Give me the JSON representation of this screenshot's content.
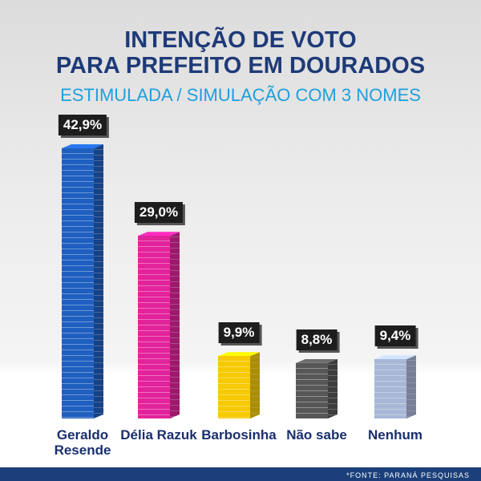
{
  "chart_data": {
    "type": "bar",
    "title": [
      "INTENÇÃO DE VOTO",
      "PARA PREFEITO EM DOURADOS"
    ],
    "subtitle": "ESTIMULADA / SIMULAÇÃO COM 3 NOMES",
    "categories": [
      "Geraldo Resende",
      "Délia Razuk",
      "Barbosinha",
      "Não sabe",
      "Nenhum"
    ],
    "values": [
      42.9,
      29.0,
      9.9,
      8.8,
      9.4
    ],
    "value_labels": [
      "42,9%",
      "29,0%",
      "9,9%",
      "8,8%",
      "9,4%"
    ],
    "colors": [
      "#1f5fbf",
      "#e2239b",
      "#f6c900",
      "#575757",
      "#a8b7d6"
    ],
    "source": "*FONTE: PARANÁ PESQUISAS"
  }
}
